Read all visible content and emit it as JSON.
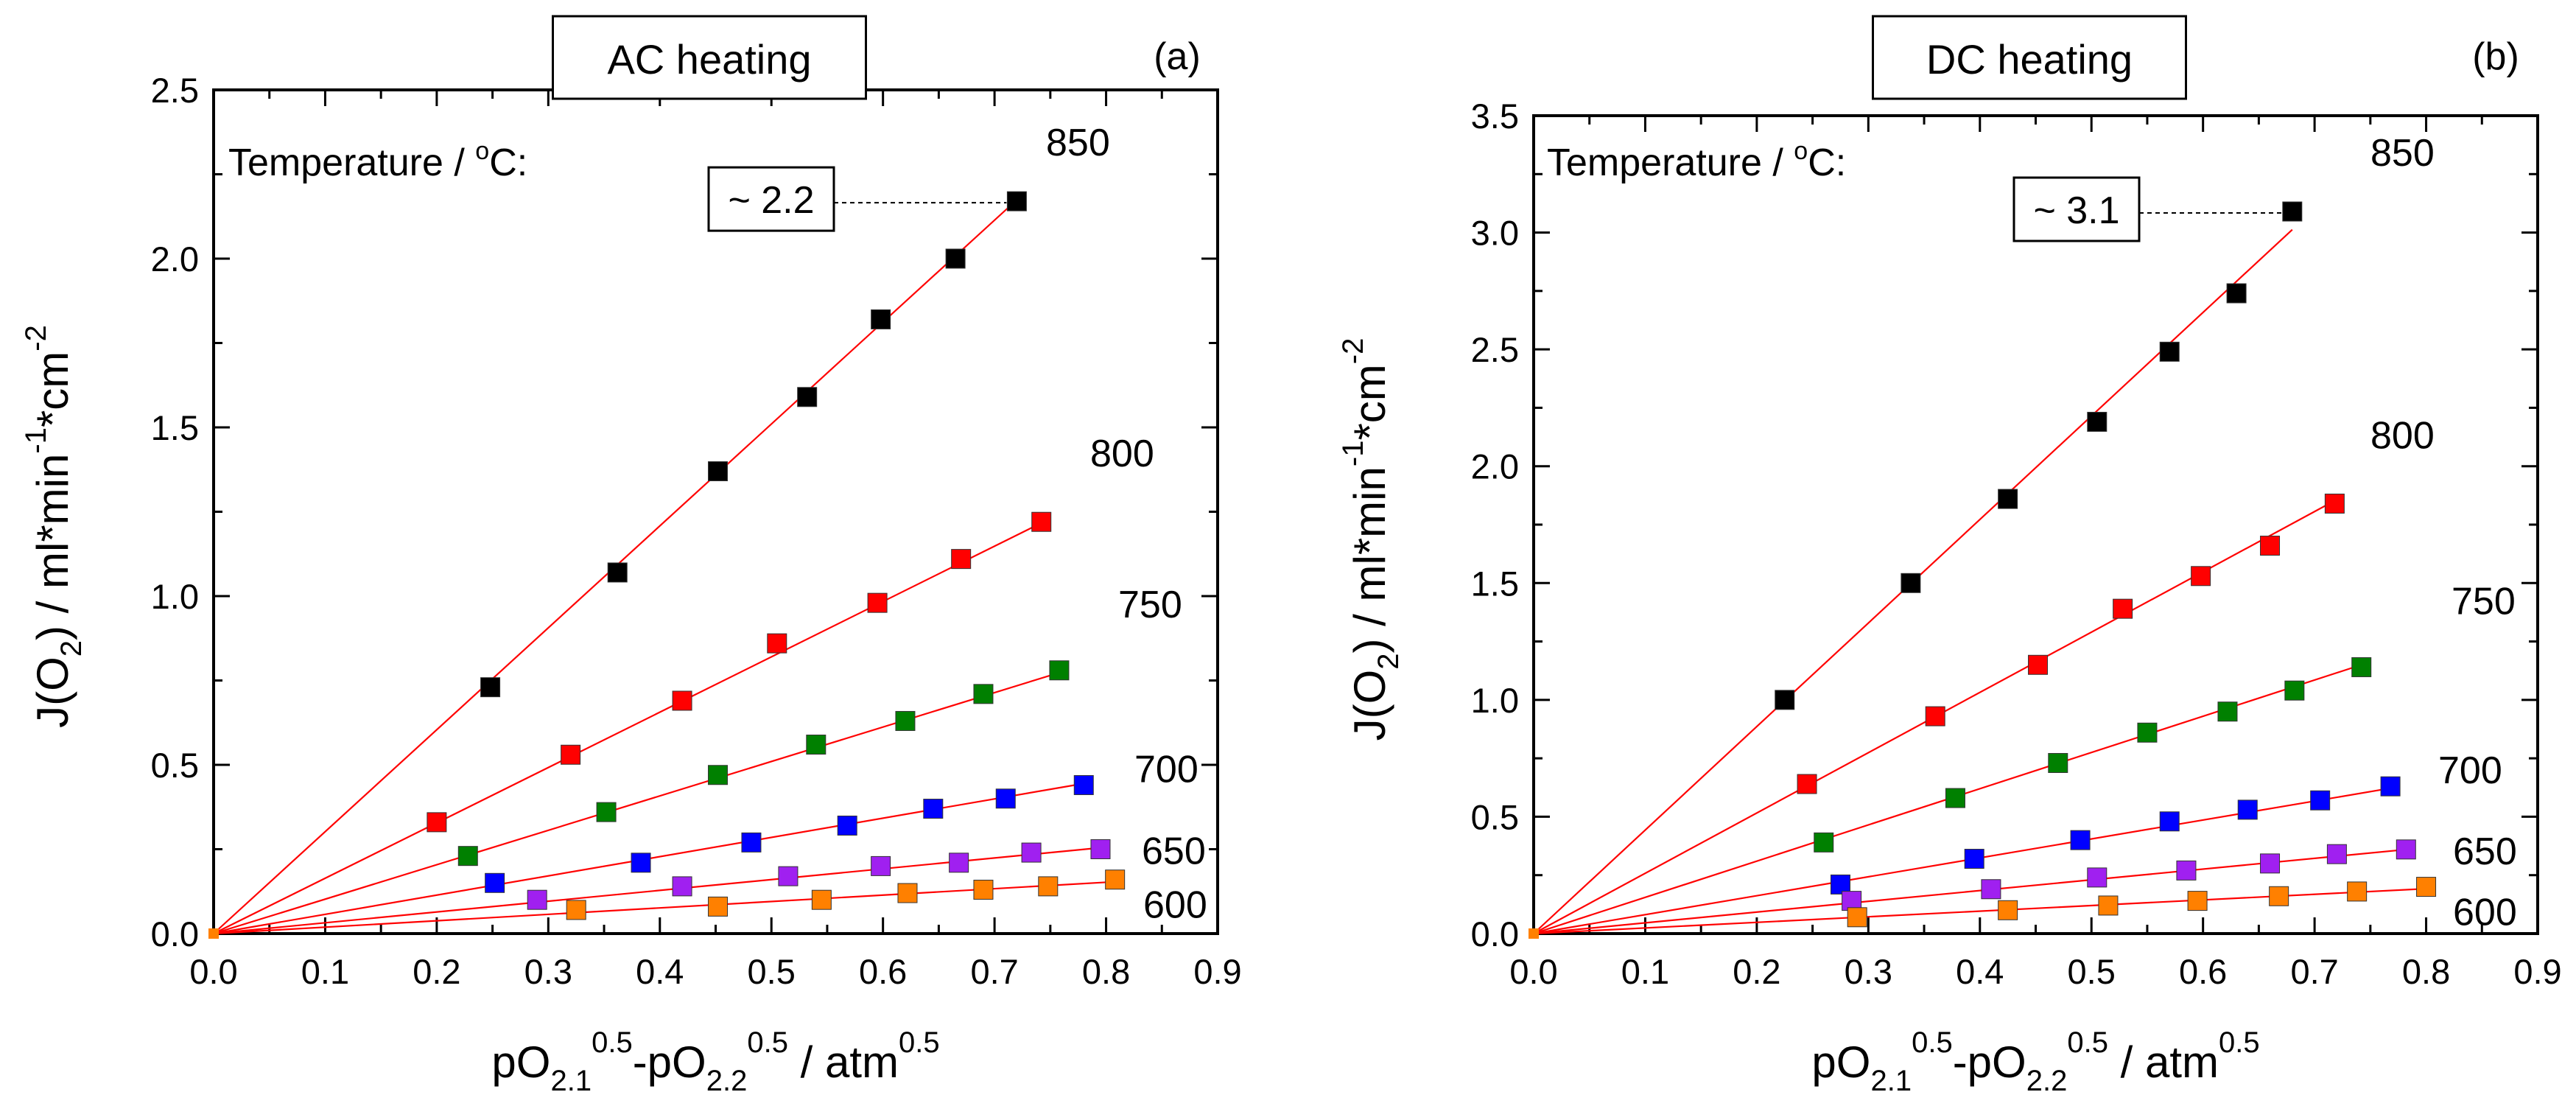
{
  "chart_data": [
    {
      "type": "scatter",
      "panel_label": "(a)",
      "title": "AC heating",
      "temperature_label": "Temperature / ",
      "temperature_unit": "C:",
      "temperature_degree": "o",
      "xlabel": "pO2.1^0.5 - pO2.2^0.5 / atm^0.5",
      "ylabel": "J(O2) / ml*min^-1*cm^-2",
      "xlim": [
        0,
        0.9
      ],
      "ylim": [
        0,
        2.5
      ],
      "x_ticks": [
        "0.0",
        "0.1",
        "0.2",
        "0.3",
        "0.4",
        "0.5",
        "0.6",
        "0.7",
        "0.8",
        "0.9"
      ],
      "y_ticks": [
        "0.0",
        "0.5",
        "1.0",
        "1.5",
        "2.0",
        "2.5"
      ],
      "annotation": {
        "text": "~ 2.2",
        "value": 2.17
      },
      "series": [
        {
          "name": "850",
          "color": "#000000",
          "slope": 3.02,
          "x": [
            0.248,
            0.362,
            0.452,
            0.532,
            0.598,
            0.665,
            0.72
          ],
          "y": [
            0.73,
            1.07,
            1.37,
            1.59,
            1.82,
            2.0,
            2.17
          ]
        },
        {
          "name": "800",
          "color": "#ff0000",
          "slope": 1.64,
          "x": [
            0.2,
            0.32,
            0.42,
            0.505,
            0.595,
            0.67,
            0.742
          ],
          "y": [
            0.33,
            0.53,
            0.69,
            0.86,
            0.98,
            1.11,
            1.22
          ]
        },
        {
          "name": "750",
          "color": "#008000",
          "slope": 1.02,
          "x": [
            0.228,
            0.352,
            0.452,
            0.54,
            0.62,
            0.69,
            0.758
          ],
          "y": [
            0.23,
            0.36,
            0.47,
            0.56,
            0.63,
            0.71,
            0.78
          ]
        },
        {
          "name": "700",
          "color": "#0000ff",
          "slope": 0.57,
          "x": [
            0.252,
            0.383,
            0.482,
            0.568,
            0.645,
            0.71,
            0.78
          ],
          "y": [
            0.15,
            0.21,
            0.27,
            0.32,
            0.37,
            0.4,
            0.44
          ]
        },
        {
          "name": "650",
          "color": "#a020f0",
          "slope": 0.32,
          "x": [
            0.29,
            0.42,
            0.515,
            0.598,
            0.668,
            0.733,
            0.795
          ],
          "y": [
            0.1,
            0.14,
            0.17,
            0.2,
            0.21,
            0.24,
            0.25
          ]
        },
        {
          "name": "600",
          "color": "#ff8000",
          "slope": 0.19,
          "x": [
            0.325,
            0.452,
            0.545,
            0.622,
            0.69,
            0.748,
            0.808
          ],
          "y": [
            0.07,
            0.08,
            0.1,
            0.12,
            0.13,
            0.14,
            0.16
          ]
        }
      ]
    },
    {
      "type": "scatter",
      "panel_label": "(b)",
      "title": "DC heating",
      "temperature_label": "Temperature / ",
      "temperature_unit": "C:",
      "temperature_degree": "o",
      "xlabel": "pO2.1^0.5 - pO2.2^0.5 / atm^0.5",
      "ylabel": "J(O2) / ml*min^-1*cm^-2",
      "xlim": [
        0,
        0.9
      ],
      "ylim": [
        0,
        3.5
      ],
      "x_ticks": [
        "0.0",
        "0.1",
        "0.2",
        "0.3",
        "0.4",
        "0.5",
        "0.6",
        "0.7",
        "0.8",
        "0.9"
      ],
      "y_ticks": [
        "0.0",
        "0.5",
        "1.0",
        "1.5",
        "2.0",
        "2.5",
        "3.0",
        "3.5"
      ],
      "annotation": {
        "text": "~ 3.1",
        "value": 3.09
      },
      "series": [
        {
          "name": "850",
          "color": "#000000",
          "slope": 4.43,
          "x": [
            0.225,
            0.338,
            0.425,
            0.505,
            0.57,
            0.63,
            0.68
          ],
          "y": [
            1.0,
            1.5,
            1.86,
            2.19,
            2.49,
            2.74,
            3.09
          ]
        },
        {
          "name": "800",
          "color": "#ff0000",
          "slope": 2.58,
          "x": [
            0.245,
            0.36,
            0.452,
            0.528,
            0.598,
            0.66,
            0.718
          ],
          "y": [
            0.64,
            0.93,
            1.15,
            1.39,
            1.53,
            1.66,
            1.84
          ]
        },
        {
          "name": "750",
          "color": "#008000",
          "slope": 1.55,
          "x": [
            0.26,
            0.378,
            0.47,
            0.55,
            0.622,
            0.682,
            0.742
          ],
          "y": [
            0.39,
            0.58,
            0.73,
            0.86,
            0.95,
            1.04,
            1.14
          ]
        },
        {
          "name": "700",
          "color": "#0000ff",
          "slope": 0.81,
          "x": [
            0.275,
            0.395,
            0.49,
            0.57,
            0.64,
            0.705,
            0.768
          ],
          "y": [
            0.21,
            0.32,
            0.4,
            0.48,
            0.53,
            0.57,
            0.63
          ]
        },
        {
          "name": "650",
          "color": "#a020f0",
          "slope": 0.46,
          "x": [
            0.285,
            0.41,
            0.505,
            0.585,
            0.66,
            0.72,
            0.782
          ],
          "y": [
            0.14,
            0.19,
            0.24,
            0.27,
            0.3,
            0.34,
            0.36
          ]
        },
        {
          "name": "600",
          "color": "#ff8000",
          "slope": 0.24,
          "x": [
            0.29,
            0.425,
            0.515,
            0.595,
            0.668,
            0.738,
            0.8
          ],
          "y": [
            0.07,
            0.1,
            0.12,
            0.14,
            0.16,
            0.18,
            0.2
          ]
        }
      ]
    }
  ]
}
